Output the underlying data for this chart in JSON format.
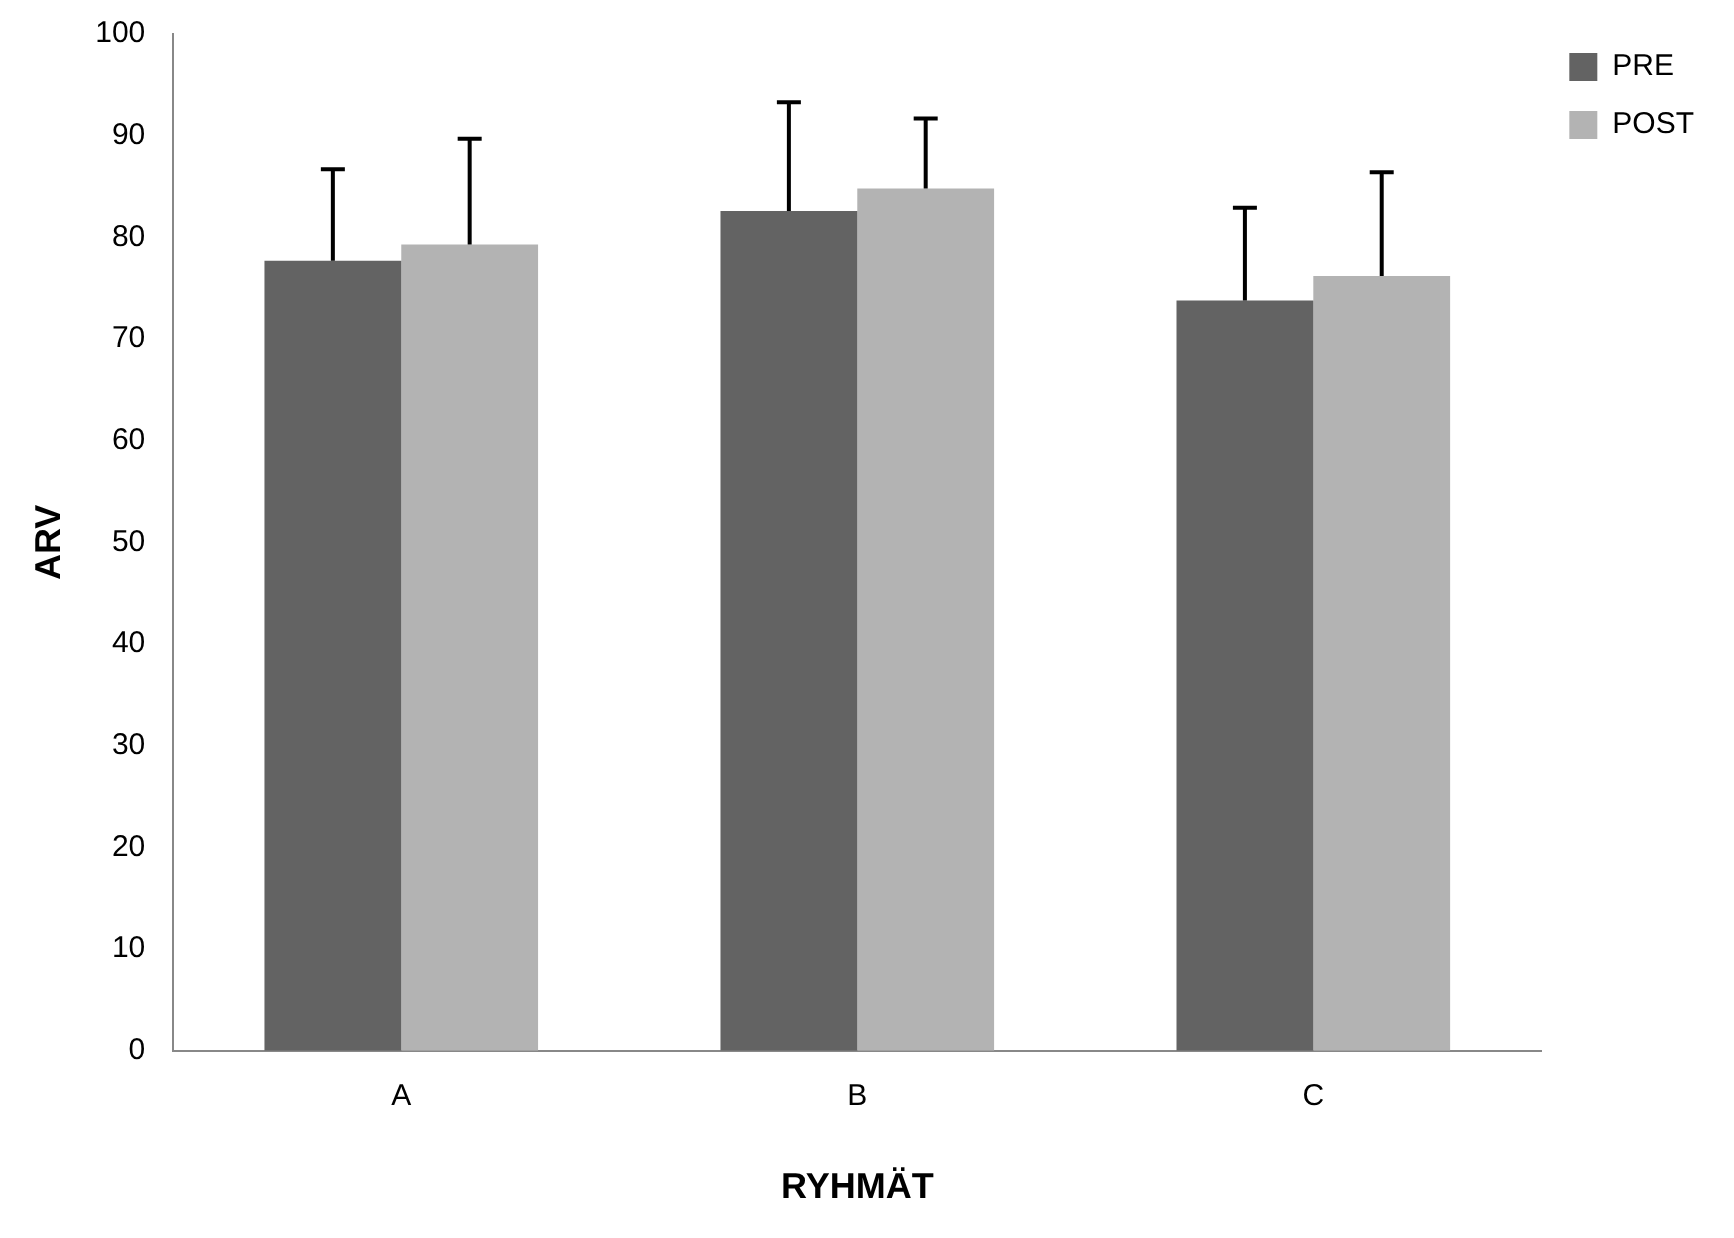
{
  "chart_data": {
    "type": "bar",
    "xlabel": "RYHMÄT",
    "ylabel": "ARV",
    "categories": [
      "A",
      "B",
      "C"
    ],
    "series": [
      {
        "name": "PRE",
        "color": "#636363",
        "values": [
          77.7,
          82.6,
          73.8
        ],
        "errors": [
          [
            77.7,
            86.7
          ],
          [
            82.6,
            93.3
          ],
          [
            73.8,
            82.9
          ]
        ]
      },
      {
        "name": "POST",
        "color": "#b3b3b3",
        "values": [
          79.3,
          84.8,
          76.2
        ],
        "errors": [
          [
            79.3,
            89.7
          ],
          [
            84.8,
            91.7
          ],
          [
            76.2,
            86.4
          ]
        ]
      }
    ],
    "ylim": [
      0,
      100
    ],
    "yticks": [
      0,
      10,
      20,
      30,
      40,
      50,
      60,
      70,
      80,
      90,
      100
    ],
    "grid": false,
    "legend": "right"
  }
}
